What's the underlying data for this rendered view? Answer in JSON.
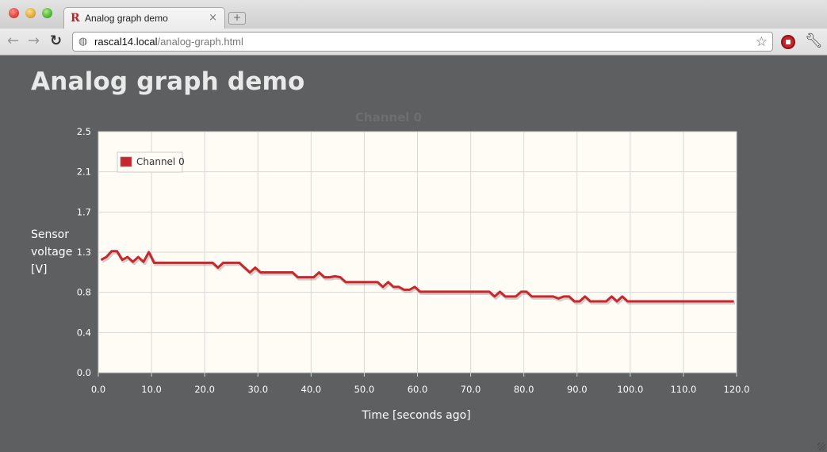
{
  "browser": {
    "tab_title": "Analog graph demo",
    "tab_close": "×",
    "new_tab": "+",
    "url_host": "rascal14.local",
    "url_path": "/analog-graph.html",
    "icons": [
      "back-arrow-icon",
      "forward-arrow-icon",
      "reload-icon",
      "globe-icon",
      "star-icon",
      "stop-extension-icon",
      "wrench-icon"
    ]
  },
  "page": {
    "title": "Analog graph demo"
  },
  "chart_data": {
    "type": "line",
    "title": "Channel 0",
    "xlabel": "Time [seconds ago]",
    "ylabel": [
      "Sensor",
      "voltage",
      "[V]"
    ],
    "xlim": [
      0,
      120
    ],
    "ylim": [
      0,
      2.5
    ],
    "x_ticks": [
      "0.0",
      "10.0",
      "20.0",
      "30.0",
      "40.0",
      "50.0",
      "60.0",
      "70.0",
      "80.0",
      "90.0",
      "100.0",
      "110.0",
      "120.0"
    ],
    "y_ticks": [
      "0.0",
      "0.4",
      "0.8",
      "1.3",
      "1.7",
      "2.1",
      "2.5"
    ],
    "grid": true,
    "legend_position": "top-left",
    "colors": {
      "series": "#c8282d",
      "plot_bg": "#fffcf6",
      "grid": "#d8d8d8"
    },
    "series": [
      {
        "name": "Channel 0",
        "x": [
          0.5,
          1.5,
          2.5,
          3.5,
          4.5,
          5.5,
          6.5,
          7.5,
          8.5,
          9.5,
          10.5,
          11.5,
          12.5,
          13.5,
          14.5,
          15.5,
          16.5,
          17.5,
          18.5,
          19.5,
          20.5,
          21.5,
          22.5,
          23.5,
          24.5,
          25.5,
          26.5,
          27.5,
          28.5,
          29.5,
          30.5,
          31.5,
          32.5,
          33.5,
          34.5,
          35.5,
          36.5,
          37.5,
          38.5,
          39.5,
          40.5,
          41.5,
          42.5,
          43.5,
          44.5,
          45.5,
          46.5,
          47.5,
          48.5,
          49.5,
          50.5,
          51.5,
          52.5,
          53.5,
          54.5,
          55.5,
          56.5,
          57.5,
          58.5,
          59.5,
          60.5,
          61.5,
          62.5,
          63.5,
          64.5,
          65.5,
          66.5,
          67.5,
          68.5,
          69.5,
          70.5,
          71.5,
          72.5,
          73.5,
          74.5,
          75.5,
          76.5,
          77.5,
          78.5,
          79.5,
          80.5,
          81.5,
          82.5,
          83.5,
          84.5,
          85.5,
          86.5,
          87.5,
          88.5,
          89.5,
          90.5,
          91.5,
          92.5,
          93.5,
          94.5,
          95.5,
          96.5,
          97.5,
          98.5,
          99.5,
          100.5,
          101.5,
          102.5,
          103.5,
          104.5,
          105.5,
          106.5,
          107.5,
          108.5,
          109.5,
          110.5,
          111.5,
          112.5,
          113.5,
          114.5,
          115.5,
          116.5,
          117.5,
          118.5,
          119.5
        ],
        "y": [
          1.17,
          1.2,
          1.26,
          1.26,
          1.17,
          1.2,
          1.15,
          1.2,
          1.15,
          1.25,
          1.14,
          1.14,
          1.14,
          1.14,
          1.14,
          1.14,
          1.14,
          1.14,
          1.14,
          1.14,
          1.14,
          1.14,
          1.09,
          1.14,
          1.14,
          1.14,
          1.14,
          1.09,
          1.04,
          1.09,
          1.04,
          1.04,
          1.04,
          1.04,
          1.04,
          1.04,
          1.04,
          0.99,
          0.99,
          0.99,
          0.99,
          1.04,
          0.99,
          0.99,
          1.0,
          0.99,
          0.94,
          0.94,
          0.94,
          0.94,
          0.94,
          0.94,
          0.94,
          0.89,
          0.94,
          0.89,
          0.89,
          0.86,
          0.86,
          0.89,
          0.84,
          0.84,
          0.84,
          0.84,
          0.84,
          0.84,
          0.84,
          0.84,
          0.84,
          0.84,
          0.84,
          0.84,
          0.84,
          0.84,
          0.79,
          0.84,
          0.79,
          0.79,
          0.79,
          0.84,
          0.84,
          0.79,
          0.79,
          0.79,
          0.79,
          0.79,
          0.77,
          0.79,
          0.79,
          0.74,
          0.74,
          0.79,
          0.74,
          0.74,
          0.74,
          0.74,
          0.79,
          0.74,
          0.79,
          0.74,
          0.74,
          0.74,
          0.74,
          0.74,
          0.74,
          0.74,
          0.74,
          0.74,
          0.74,
          0.74,
          0.74,
          0.74,
          0.74,
          0.74,
          0.74,
          0.74,
          0.74,
          0.74,
          0.74,
          0.74
        ]
      }
    ]
  }
}
